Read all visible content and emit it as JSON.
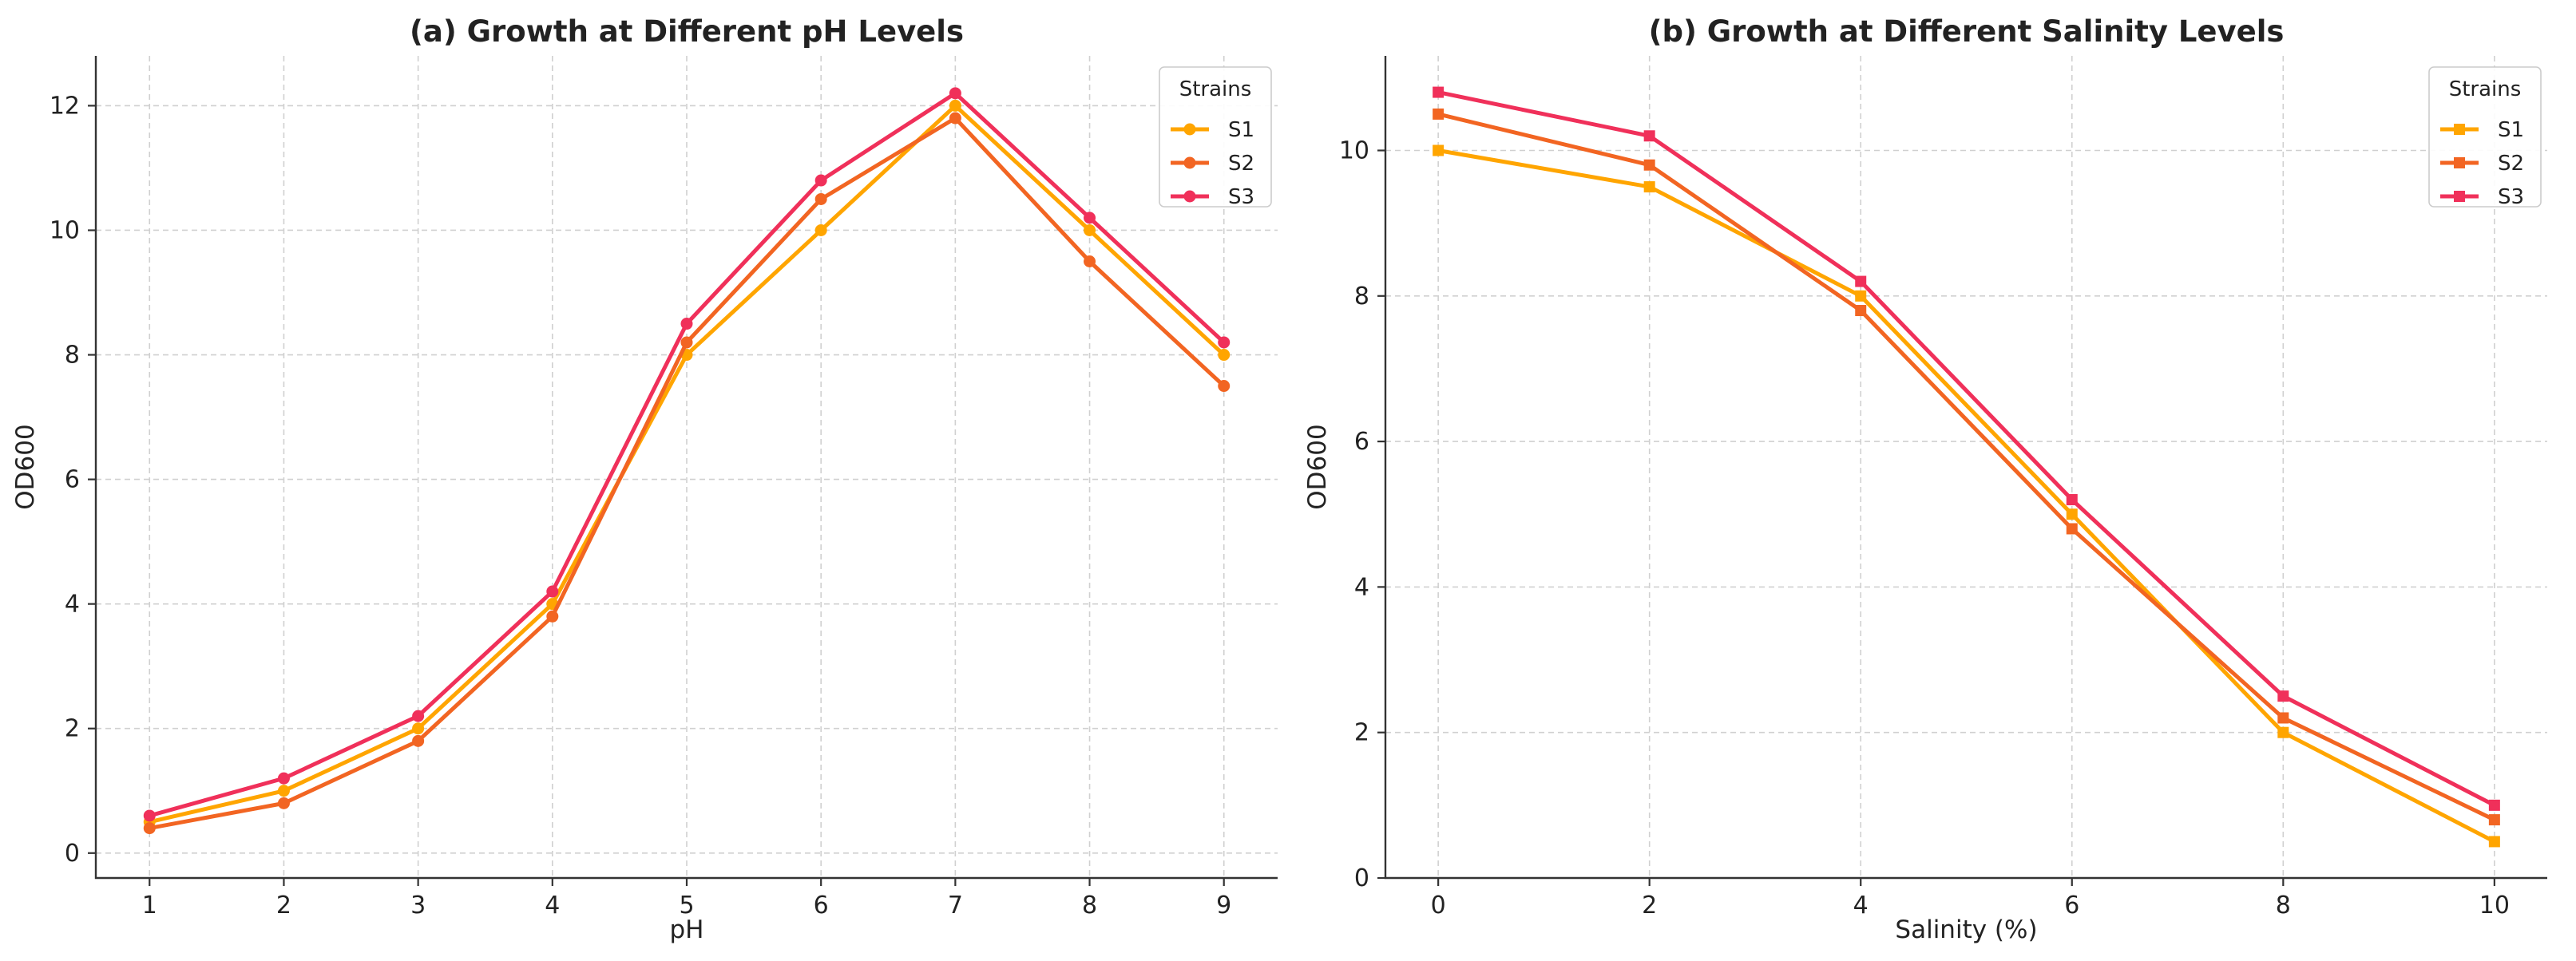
{
  "chart_data": [
    {
      "type": "line",
      "title": "(a) Growth at Different pH Levels",
      "xlabel": "pH",
      "ylabel": "OD600",
      "x": [
        1,
        2,
        3,
        4,
        5,
        6,
        7,
        8,
        9
      ],
      "xticks": [
        1,
        2,
        3,
        4,
        5,
        6,
        7,
        8,
        9
      ],
      "yticks": [
        0,
        2,
        4,
        6,
        8,
        10,
        12
      ],
      "xlim": [
        0.6,
        9.4
      ],
      "ylim": [
        -0.4,
        12.8
      ],
      "grid": true,
      "marker": "circle",
      "legend": {
        "title": "Strains",
        "position": "top-right"
      },
      "series": [
        {
          "name": "S1",
          "color": "#FFA500",
          "values": [
            0.5,
            1.0,
            2.0,
            4.0,
            8.0,
            10.0,
            12.0,
            10.0,
            8.0
          ]
        },
        {
          "name": "S2",
          "color": "#F26522",
          "values": [
            0.4,
            0.8,
            1.8,
            3.8,
            8.2,
            10.5,
            11.8,
            9.5,
            7.5
          ]
        },
        {
          "name": "S3",
          "color": "#F0305A",
          "values": [
            0.6,
            1.2,
            2.2,
            4.2,
            8.5,
            10.8,
            12.2,
            10.2,
            8.2
          ]
        }
      ]
    },
    {
      "type": "line",
      "title": "(b) Growth at Different Salinity Levels",
      "xlabel": "Salinity (%)",
      "ylabel": "OD600",
      "x": [
        0,
        2,
        4,
        6,
        8,
        10
      ],
      "xticks": [
        0,
        2,
        4,
        6,
        8,
        10
      ],
      "yticks": [
        0,
        2,
        4,
        6,
        8,
        10
      ],
      "xlim": [
        -0.5,
        10.5
      ],
      "ylim": [
        0,
        11.3
      ],
      "grid": true,
      "marker": "square",
      "legend": {
        "title": "Strains",
        "position": "top-right"
      },
      "series": [
        {
          "name": "S1",
          "color": "#FFA500",
          "values": [
            10.0,
            9.5,
            8.0,
            5.0,
            2.0,
            0.5
          ]
        },
        {
          "name": "S2",
          "color": "#F26522",
          "values": [
            10.5,
            9.8,
            7.8,
            4.8,
            2.2,
            0.8
          ]
        },
        {
          "name": "S3",
          "color": "#F0305A",
          "values": [
            10.8,
            10.2,
            8.2,
            5.2,
            2.5,
            1.0
          ]
        }
      ]
    }
  ]
}
